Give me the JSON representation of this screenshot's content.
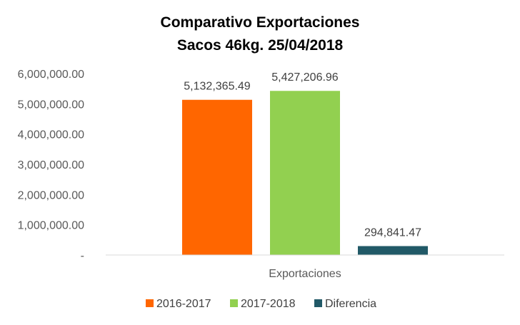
{
  "chart_data": {
    "type": "bar",
    "title_lines": [
      "Comparativo Exportaciones",
      "Sacos 46kg. 25/04/2018"
    ],
    "categories": [
      "Exportaciones"
    ],
    "series": [
      {
        "name": "2016-2017",
        "values": [
          5132365.49
        ],
        "label": "5,132,365.49",
        "color": "#FF6600"
      },
      {
        "name": "2017-2018",
        "values": [
          5427206.96
        ],
        "label": "5,427,206.96",
        "color": "#92D050"
      },
      {
        "name": "Diferencia",
        "values": [
          294841.47
        ],
        "label": "294,841.47",
        "color": "#215967"
      }
    ],
    "ylim": [
      0,
      6000000
    ],
    "yticks": [
      {
        "value": 0,
        "label": "-"
      },
      {
        "value": 1000000,
        "label": "1,000,000.00"
      },
      {
        "value": 2000000,
        "label": "2,000,000.00"
      },
      {
        "value": 3000000,
        "label": "3,000,000.00"
      },
      {
        "value": 4000000,
        "label": "4,000,000.00"
      },
      {
        "value": 5000000,
        "label": "5,000,000.00"
      },
      {
        "value": 6000000,
        "label": "6,000,000.00"
      }
    ],
    "grid": false,
    "legend": "bottom",
    "xlabel": "",
    "ylabel": ""
  }
}
